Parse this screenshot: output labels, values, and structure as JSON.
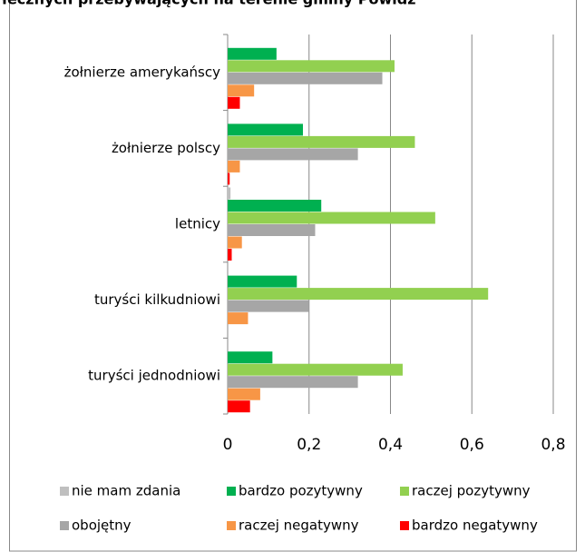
{
  "chart_data": {
    "type": "bar",
    "orientation": "horizontal",
    "title": "łecznych przebywających na terenie gminy Powidz",
    "categories": [
      "żołnierze amerykańscy",
      "żołnierze polscy",
      "letnicy",
      "turyści kilkudniowi",
      "turyści jednodniowi"
    ],
    "series": [
      {
        "name": "nie mam zdania",
        "color": "#bfbfbf",
        "values": [
          0,
          0,
          0.007,
          0,
          0
        ]
      },
      {
        "name": "bardzo pozytywny",
        "color": "#00b050",
        "values": [
          0.12,
          0.185,
          0.23,
          0.17,
          0.11
        ]
      },
      {
        "name": "raczej pozytywny",
        "color": "#92d050",
        "values": [
          0.41,
          0.46,
          0.51,
          0.64,
          0.43
        ]
      },
      {
        "name": "obojętny",
        "color": "#a6a6a6",
        "values": [
          0.38,
          0.32,
          0.215,
          0.2,
          0.32
        ]
      },
      {
        "name": "raczej negatywny",
        "color": "#f79646",
        "values": [
          0.065,
          0.03,
          0.035,
          0.05,
          0.08
        ]
      },
      {
        "name": "bardzo negatywny",
        "color": "#ff0000",
        "values": [
          0.03,
          0.005,
          0.01,
          0,
          0.055
        ]
      }
    ],
    "xlim": [
      0,
      0.8
    ],
    "xticks": [
      0,
      {
        "value": 0.2,
        "label": "0,2"
      },
      {
        "value": 0.4,
        "label": "0,4"
      },
      {
        "value": 0.6,
        "label": "0,6"
      },
      {
        "value": 0.8,
        "label": "0,8"
      }
    ],
    "grid": true,
    "legend": "bottom"
  }
}
